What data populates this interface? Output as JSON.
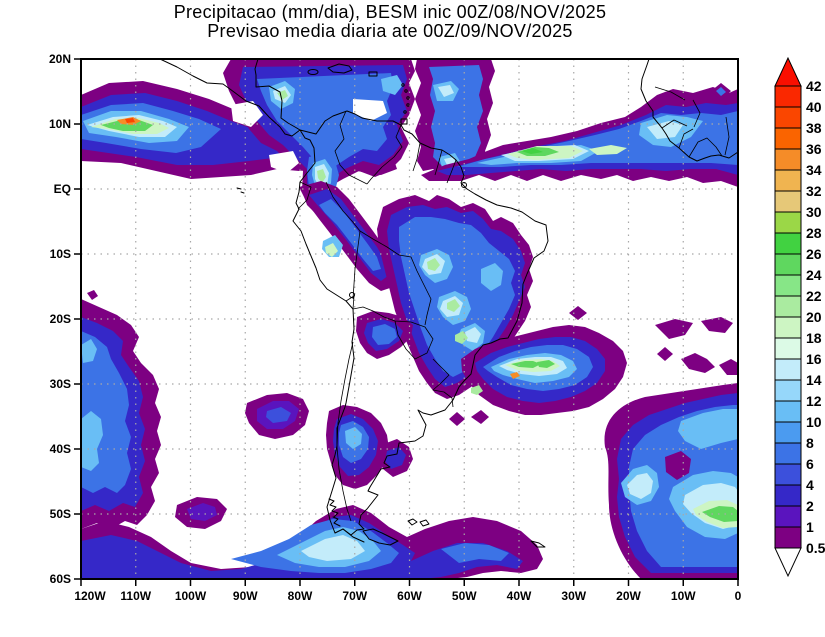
{
  "title": {
    "line1": "Precipitacao (mm/dia), BESM inic 00Z/08/NOV/2025",
    "line2": "Previsao media diaria ate 00Z/09/NOV/2025"
  },
  "axes": {
    "y_labels": [
      "20N",
      "10N",
      "EQ",
      "10S",
      "20S",
      "30S",
      "40S",
      "50S",
      "60S"
    ],
    "x_labels": [
      "120W",
      "110W",
      "100W",
      "90W",
      "80W",
      "70W",
      "60W",
      "50W",
      "40W",
      "30W",
      "20W",
      "10W",
      "0"
    ]
  },
  "colorbar": {
    "levels": [
      "42",
      "40",
      "38",
      "36",
      "34",
      "32",
      "30",
      "28",
      "26",
      "24",
      "22",
      "20",
      "18",
      "16",
      "14",
      "12",
      "10",
      "8",
      "6",
      "4",
      "2",
      "1",
      "0.5"
    ],
    "cell_order_top_to_bottom": [
      "40",
      "38",
      "36",
      "34",
      "32",
      "30",
      "28",
      "26",
      "24",
      "22",
      "20",
      "18",
      "16",
      "14",
      "12",
      "10",
      "8",
      "6",
      "4",
      "2",
      "1",
      "0.5"
    ],
    "palette": {
      "42": "#fa0f00",
      "40": "#fa2800",
      "38": "#fa4600",
      "36": "#fa6400",
      "34": "#f58c28",
      "32": "#f0b450",
      "30": "#e6c878",
      "28": "#9bd747",
      "26": "#41d241",
      "24": "#5fd75f",
      "22": "#87e687",
      "20": "#aaeba0",
      "18": "#cdf5c3",
      "16": "#dcfae6",
      "14": "#c3ecfa",
      "12": "#96d7fa",
      "10": "#69bef5",
      "8": "#4b9bf0",
      "6": "#3c73e6",
      "4": "#3c50dc",
      "2": "#3528c8",
      "1": "#5a14be",
      "0.5": "#7d0082"
    },
    "above_max_arrow_color_key": "42",
    "below_min_arrow_color": "#ffffff"
  },
  "chart_data": {
    "type": "heatmap",
    "subtype": "filled-contour precipitation map",
    "title": "Precipitacao (mm/dia), BESM inic 00Z/08/NOV/2025",
    "subtitle": "Previsao media diaria ate 00Z/09/NOV/2025",
    "units": "mm/dia",
    "model": "BESM",
    "init_time": "00Z/08/NOV/2025",
    "valid_through": "00Z/09/NOV/2025",
    "lon_range": [
      "120W",
      "0"
    ],
    "lat_range": [
      "60S",
      "20N"
    ],
    "grid_spacing_deg": 10,
    "gridlines": "dotted gray every 10 degrees",
    "contour_levels": [
      0.5,
      1,
      2,
      4,
      6,
      8,
      10,
      12,
      14,
      16,
      18,
      20,
      22,
      24,
      26,
      28,
      30,
      32,
      34,
      36,
      38,
      40,
      42
    ],
    "features": [
      {
        "region": "Pacific ITCZ near 112W-108W, 10N",
        "max_mm_dia": "36-40 (orange-red core)"
      },
      {
        "region": "Eastern Pacific ITCZ band 120W-85W, 5-14N",
        "max_mm_dia": "10-20"
      },
      {
        "region": "Nicaragua / Central America",
        "max_mm_dia": "18-22"
      },
      {
        "region": "Western Colombia, 76W 4N",
        "max_mm_dia": "18-20"
      },
      {
        "region": "Atlantic ITCZ band 55W-0, 3-10N",
        "max_mm_dia": "24-26 (green cores 40W-30W, 7N)"
      },
      {
        "region": "Guinea / Liberia coast, West Africa",
        "max_mm_dia": "14-16"
      },
      {
        "region": "Eastern Peru / Andes band EQ-15S",
        "max_mm_dia": "14-18"
      },
      {
        "region": "Central and eastern Brazil 57W-38W, 8S-25S",
        "max_mm_dia": "18-20 (pale green spots Mato Grosso, Goias, Sao Paulo)"
      },
      {
        "region": "Southeast Brazil coast / SW Atlantic 44W-33W, 26-30S",
        "max_mm_dia": "32-34 isolated spot inside 24-26 green band"
      },
      {
        "region": "South Atlantic system 25W-0, 25S-55S",
        "max_mm_dia": "24-26 (green core near 5W-0, 48-52S)"
      },
      {
        "region": "SE Pacific storm track along 120W, 17S-55S",
        "max_mm_dia": "10-14"
      },
      {
        "region": "Southern Chile 75W-65W, 35S-46S",
        "max_mm_dia": "10-12"
      },
      {
        "region": "NW Argentina / Paraguay 69W-60W, 20S-27S",
        "max_mm_dia": "4-8"
      },
      {
        "region": "Drake Passage / Tierra del Fuego band",
        "max_mm_dia": "12-16"
      },
      {
        "region": "Mid SE Pacific blob 90W-79W, 32S-39S",
        "max_mm_dia": "2-4"
      }
    ]
  }
}
